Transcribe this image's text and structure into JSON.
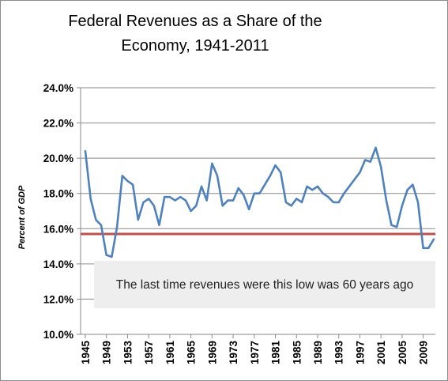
{
  "chart_data": {
    "type": "line",
    "title_lines": [
      "Federal Revenues as a Share of the",
      "Economy, 1941-2011"
    ],
    "xlabel": "",
    "ylabel": "Percent of GDP",
    "ylim": [
      10.0,
      24.0
    ],
    "y_ticks": [
      "10.0%",
      "12.0%",
      "14.0%",
      "16.0%",
      "18.0%",
      "20.0%",
      "22.0%",
      "24.0%"
    ],
    "x_ticks": [
      "1945",
      "1949",
      "1953",
      "1957",
      "1961",
      "1965",
      "1969",
      "1973",
      "1977",
      "1981",
      "1985",
      "1989",
      "1993",
      "1997",
      "2001",
      "2005",
      "2009"
    ],
    "grid": "horizontal",
    "line_color": "#4f81bd",
    "reference_line": {
      "value": 15.7,
      "color": "#c0504d"
    },
    "annotation": "The last time revenues were this low was 60 years ago",
    "series": [
      {
        "x": [
          1945,
          1946,
          1947,
          1948,
          1949,
          1950,
          1951,
          1952,
          1953,
          1954,
          1955,
          1956,
          1957,
          1958,
          1959,
          1960,
          1961,
          1962,
          1963,
          1964,
          1965,
          1966,
          1967,
          1968,
          1969,
          1970,
          1971,
          1972,
          1973,
          1974,
          1975,
          1976,
          1977,
          1978,
          1979,
          1980,
          1981,
          1982,
          1983,
          1984,
          1985,
          1986,
          1987,
          1988,
          1989,
          1990,
          1991,
          1992,
          1993,
          1994,
          1995,
          1996,
          1997,
          1998,
          1999,
          2000,
          2001,
          2002,
          2003,
          2004,
          2005,
          2006,
          2007,
          2008,
          2009,
          2010,
          2011
        ],
        "values": [
          20.4,
          17.7,
          16.5,
          16.2,
          14.5,
          14.4,
          16.1,
          19.0,
          18.7,
          18.5,
          16.5,
          17.5,
          17.7,
          17.3,
          16.2,
          17.8,
          17.8,
          17.6,
          17.8,
          17.6,
          17.0,
          17.3,
          18.4,
          17.6,
          19.7,
          19.0,
          17.3,
          17.6,
          17.6,
          18.3,
          17.9,
          17.1,
          18.0,
          18.0,
          18.5,
          19.0,
          19.6,
          19.2,
          17.5,
          17.3,
          17.7,
          17.5,
          18.4,
          18.2,
          18.4,
          18.0,
          17.8,
          17.5,
          17.5,
          18.0,
          18.4,
          18.8,
          19.2,
          19.9,
          19.8,
          20.6,
          19.5,
          17.6,
          16.2,
          16.1,
          17.3,
          18.2,
          18.5,
          17.5,
          14.9,
          14.9,
          15.4
        ]
      }
    ]
  }
}
